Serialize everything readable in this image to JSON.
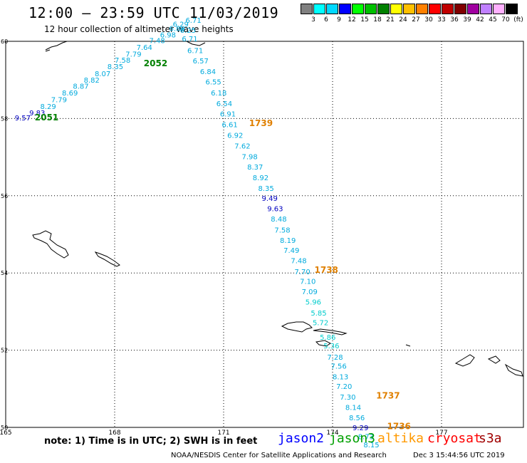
{
  "title": "12:00 – 23:59 UTC 11/03/2019",
  "subtitle": "12 hour collection of altimeter wave heights",
  "legend": {
    "colors": [
      "#808080",
      "#00ffff",
      "#00d8ff",
      "#0000ff",
      "#00ff00",
      "#00c000",
      "#008000",
      "#ffff00",
      "#ffc000",
      "#ff8000",
      "#ff0000",
      "#c00000",
      "#800000",
      "#a000a0",
      "#c080ff",
      "#ffb0ff",
      "#000000"
    ],
    "labels": [
      "3",
      "6",
      "9",
      "12",
      "15",
      "18",
      "21",
      "24",
      "27",
      "30",
      "33",
      "36",
      "39",
      "42",
      "45",
      "70",
      "(ft)"
    ]
  },
  "map": {
    "lon_ticks": [
      "165",
      "168",
      "171",
      "174",
      "177"
    ],
    "lat_ticks": [
      "60",
      "58",
      "56",
      "54",
      "52",
      "50"
    ]
  },
  "passes": [
    {
      "label": "2051",
      "color": "#008000",
      "lon": 165.8,
      "lat": 57.95
    },
    {
      "label": "2052",
      "color": "#008000",
      "lon": 168.8,
      "lat": 59.35
    },
    {
      "label": "1739",
      "color": "#e08000",
      "lon": 171.7,
      "lat": 57.8
    },
    {
      "label": "1738",
      "color": "#e08000",
      "lon": 173.5,
      "lat": 54.0
    },
    {
      "label": "1737",
      "color": "#e08000",
      "lon": 175.2,
      "lat": 50.75
    },
    {
      "label": "1736",
      "color": "#e08000",
      "lon": 175.5,
      "lat": 49.95
    }
  ],
  "track_a": {
    "color_default": "#00aadd",
    "points": [
      {
        "v": "9.57",
        "lon": 165.25,
        "lat": 57.95,
        "c": "#0000c0"
      },
      {
        "v": "9.83",
        "lon": 165.65,
        "lat": 58.08,
        "c": "#0000c0"
      },
      {
        "v": "8.29",
        "lon": 165.95,
        "lat": 58.25
      },
      {
        "v": "7.79",
        "lon": 166.25,
        "lat": 58.42
      },
      {
        "v": "8.69",
        "lon": 166.55,
        "lat": 58.6
      },
      {
        "v": "8.87",
        "lon": 166.85,
        "lat": 58.77
      },
      {
        "v": "8.82",
        "lon": 167.15,
        "lat": 58.93
      },
      {
        "v": "8.07",
        "lon": 167.45,
        "lat": 59.1
      },
      {
        "v": "8.35",
        "lon": 167.8,
        "lat": 59.28
      },
      {
        "v": "7.58",
        "lon": 168.0,
        "lat": 59.45
      },
      {
        "v": "7.79",
        "lon": 168.3,
        "lat": 59.6
      },
      {
        "v": "7.64",
        "lon": 168.6,
        "lat": 59.78
      },
      {
        "v": "7.48",
        "lon": 168.95,
        "lat": 59.95
      },
      {
        "v": "6.98",
        "lon": 169.25,
        "lat": 60.1
      },
      {
        "v": "6.89",
        "lon": 169.5,
        "lat": 60.27
      },
      {
        "v": "6.71",
        "lon": 169.95,
        "lat": 60.48
      }
    ]
  },
  "track_b": {
    "color_default": "#00aadd",
    "points": [
      {
        "v": "6.29",
        "lon": 169.6,
        "lat": 60.38
      },
      {
        "v": "6.25",
        "lon": 169.8,
        "lat": 60.22
      },
      {
        "v": "6.71",
        "lon": 169.85,
        "lat": 60.0
      },
      {
        "v": "6.71",
        "lon": 170.0,
        "lat": 59.7
      },
      {
        "v": "6.57",
        "lon": 170.15,
        "lat": 59.43
      },
      {
        "v": "6.84",
        "lon": 170.35,
        "lat": 59.15
      },
      {
        "v": "6.55",
        "lon": 170.5,
        "lat": 58.88
      },
      {
        "v": "6.18",
        "lon": 170.65,
        "lat": 58.6
      },
      {
        "v": "6.54",
        "lon": 170.8,
        "lat": 58.32
      },
      {
        "v": "6.91",
        "lon": 170.9,
        "lat": 58.05
      },
      {
        "v": "6.61",
        "lon": 170.95,
        "lat": 57.78
      },
      {
        "v": "6.92",
        "lon": 171.1,
        "lat": 57.5
      },
      {
        "v": "7.62",
        "lon": 171.3,
        "lat": 57.22
      },
      {
        "v": "7.98",
        "lon": 171.5,
        "lat": 56.95
      },
      {
        "v": "8.37",
        "lon": 171.65,
        "lat": 56.68
      },
      {
        "v": "8.92",
        "lon": 171.8,
        "lat": 56.4
      },
      {
        "v": "8.35",
        "lon": 171.95,
        "lat": 56.13
      },
      {
        "v": "9.49",
        "lon": 172.05,
        "lat": 55.87,
        "c": "#0000c0"
      },
      {
        "v": "9.63",
        "lon": 172.2,
        "lat": 55.6,
        "c": "#0000c0"
      },
      {
        "v": "8.48",
        "lon": 172.3,
        "lat": 55.33
      },
      {
        "v": "7.58",
        "lon": 172.4,
        "lat": 55.05
      },
      {
        "v": "8.19",
        "lon": 172.55,
        "lat": 54.78
      },
      {
        "v": "7.49",
        "lon": 172.65,
        "lat": 54.52
      },
      {
        "v": "7.48",
        "lon": 172.85,
        "lat": 54.25
      },
      {
        "v": "7.70",
        "lon": 172.95,
        "lat": 53.97
      },
      {
        "v": "7.10",
        "lon": 173.1,
        "lat": 53.72
      },
      {
        "v": "7.09",
        "lon": 173.15,
        "lat": 53.45
      },
      {
        "v": "5.96",
        "lon": 173.25,
        "lat": 53.18,
        "c": "#00cccc"
      },
      {
        "v": "5.85",
        "lon": 173.4,
        "lat": 52.9,
        "c": "#00cccc"
      },
      {
        "v": "5.72",
        "lon": 173.45,
        "lat": 52.65,
        "c": "#00cccc"
      },
      {
        "v": "5.86",
        "lon": 173.65,
        "lat": 52.27,
        "c": "#00cccc"
      },
      {
        "v": "5.36",
        "lon": 173.75,
        "lat": 52.05,
        "c": "#00cccc"
      },
      {
        "v": "7.28",
        "lon": 173.85,
        "lat": 51.75
      },
      {
        "v": "7.56",
        "lon": 173.95,
        "lat": 51.52
      },
      {
        "v": "8.13",
        "lon": 174.0,
        "lat": 51.25
      },
      {
        "v": "7.20",
        "lon": 174.1,
        "lat": 51.0
      },
      {
        "v": "7.30",
        "lon": 174.2,
        "lat": 50.72
      },
      {
        "v": "8.14",
        "lon": 174.35,
        "lat": 50.45
      },
      {
        "v": "8.56",
        "lon": 174.45,
        "lat": 50.18
      },
      {
        "v": "9.29",
        "lon": 174.55,
        "lat": 49.93,
        "c": "#0000c0"
      },
      {
        "v": "8.73",
        "lon": 174.7,
        "lat": 49.7
      },
      {
        "v": "8.15",
        "lon": 174.85,
        "lat": 49.48
      }
    ]
  },
  "footer": {
    "note": "note:  1) Time is in UTC;  2) SWH is in feet",
    "satellites": [
      {
        "name": "jason2",
        "color": "#0000ff"
      },
      {
        "name": "jason3",
        "color": "#00a000"
      },
      {
        "name": "altika",
        "color": "#ff9900"
      },
      {
        "name": "cryosat",
        "color": "#ff0000"
      },
      {
        "name": "s3a",
        "color": "#a00000"
      }
    ],
    "credit": "NOAA/NESDIS Center for Satellite Applications and Research",
    "timestamp": "Dec  3 15:44:56 UTC 2019"
  }
}
